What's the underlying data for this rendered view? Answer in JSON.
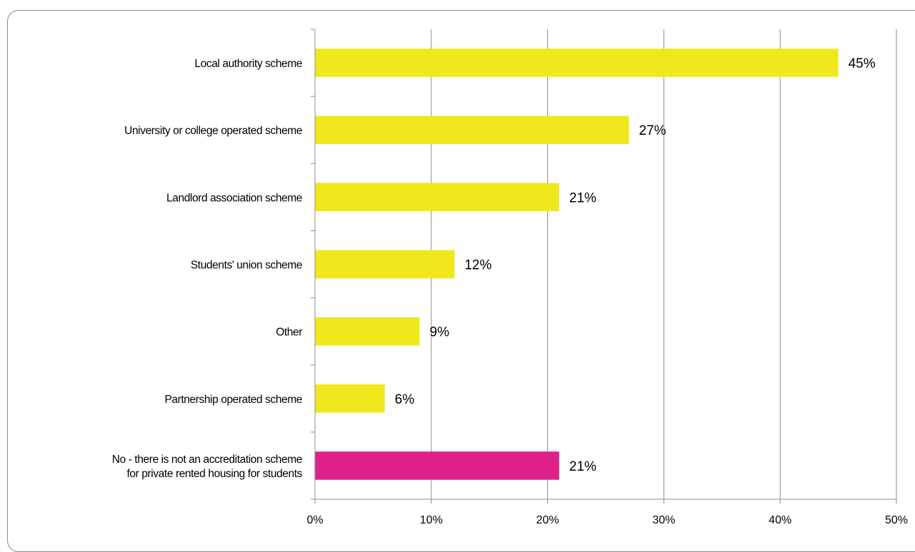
{
  "chart_data": {
    "type": "bar",
    "orientation": "horizontal",
    "categories": [
      "Local authority scheme",
      "University or college operated scheme",
      "Landlord association scheme",
      "Students' union scheme",
      "Other",
      "Partnership operated scheme",
      "No - there is not an accreditation scheme for private rented housing for students"
    ],
    "category_lines": [
      [
        "Local authority scheme"
      ],
      [
        "University or college operated scheme"
      ],
      [
        "Landlord association scheme"
      ],
      [
        "Students' union scheme"
      ],
      [
        "Other"
      ],
      [
        "Partnership operated scheme"
      ],
      [
        "No - there is not an accreditation scheme",
        "for private rented housing for students"
      ]
    ],
    "values": [
      45,
      27,
      21,
      12,
      9,
      6,
      21
    ],
    "value_labels": [
      "45%",
      "27%",
      "21%",
      "12%",
      "9%",
      "6%",
      "21%"
    ],
    "bar_colors": [
      "#f0e81c",
      "#f0e81c",
      "#f0e81c",
      "#f0e81c",
      "#f0e81c",
      "#f0e81c",
      "#e0208a"
    ],
    "xlim": [
      0,
      50
    ],
    "xticks": [
      0,
      10,
      20,
      30,
      40,
      50
    ],
    "xtick_labels": [
      "0%",
      "10%",
      "20%",
      "30%",
      "40%",
      "50%"
    ],
    "grid": true,
    "legend": "none",
    "title": "",
    "xlabel": "",
    "ylabel": ""
  }
}
